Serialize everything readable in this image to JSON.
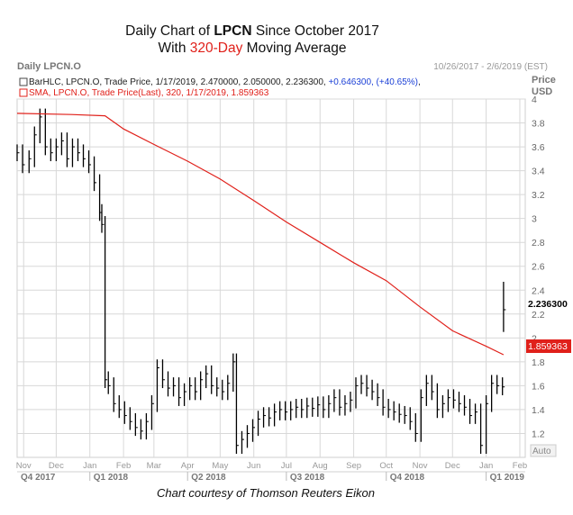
{
  "title": {
    "line1_prefix": "Daily Chart of ",
    "line1_ticker": "LPCN",
    "line1_suffix": " Since October 2017",
    "line2_prefix": "With ",
    "line2_highlight": "320-Day",
    "line2_suffix": " Moving Average"
  },
  "header": {
    "left": "Daily LPCN.O",
    "right": "10/26/2017 - 2/6/2019 (EST)",
    "price_label": "Price",
    "currency_label": "USD"
  },
  "legend": {
    "line1_text": "BarHLC, LPCN.O, Trade Price, 1/17/2019, 2.470000, 2.050000, 2.236300, ",
    "line1_change": "+0.646300, (+40.65%)",
    "line1_end": ",",
    "line2_text": "SMA, LPCN.O, Trade Price(Last),  320,  1/17/2019,  1.859363"
  },
  "badges": {
    "last_price": "2.236300",
    "sma_value": "1.859363",
    "auto": "Auto"
  },
  "caption": "Chart courtesy of Thomson Reuters Eikon",
  "colors": {
    "price": "#000000",
    "sma": "#e0201a",
    "grid": "#d8d8d8",
    "change": "#1a3fd6",
    "axis_text": "#666666"
  },
  "chart_data": {
    "type": "line",
    "y_range": [
      1.0,
      4.0
    ],
    "x_range": [
      "2017-10-26",
      "2019-02-06"
    ],
    "y_ticks": [
      1.2,
      1.4,
      1.6,
      1.8,
      2,
      2.2,
      2.4,
      2.6,
      2.8,
      3,
      3.2,
      3.4,
      3.6,
      3.8,
      4
    ],
    "y_tick_labels": [
      "1.2",
      "1.4",
      "1.6",
      "1.8",
      "2",
      "2.2",
      "2.4",
      "2.6",
      "2.8",
      "3",
      "3.2",
      "3.4",
      "3.6",
      "3.8",
      "4"
    ],
    "months": [
      {
        "label": "Nov",
        "date": "2017-11-01"
      },
      {
        "label": "Dec",
        "date": "2017-12-01"
      },
      {
        "label": "Jan",
        "date": "2018-01-01"
      },
      {
        "label": "Feb",
        "date": "2018-02-01"
      },
      {
        "label": "Mar",
        "date": "2018-03-01"
      },
      {
        "label": "Apr",
        "date": "2018-04-01"
      },
      {
        "label": "May",
        "date": "2018-05-01"
      },
      {
        "label": "Jun",
        "date": "2018-06-01"
      },
      {
        "label": "Jul",
        "date": "2018-07-01"
      },
      {
        "label": "Aug",
        "date": "2018-08-01"
      },
      {
        "label": "Sep",
        "date": "2018-09-01"
      },
      {
        "label": "Oct",
        "date": "2018-10-01"
      },
      {
        "label": "Nov",
        "date": "2018-11-01"
      },
      {
        "label": "Dec",
        "date": "2018-12-01"
      },
      {
        "label": "Jan",
        "date": "2019-01-01"
      },
      {
        "label": "Feb",
        "date": "2019-02-01"
      }
    ],
    "quarters": [
      {
        "label": "Q4 2017",
        "date": "2017-10-26"
      },
      {
        "label": "Q1 2018",
        "date": "2018-01-01"
      },
      {
        "label": "Q2 2018",
        "date": "2018-04-01"
      },
      {
        "label": "Q3 2018",
        "date": "2018-07-01"
      },
      {
        "label": "Q4 2018",
        "date": "2018-10-01"
      },
      {
        "label": "Q1 2019",
        "date": "2019-01-01"
      }
    ],
    "series": [
      {
        "name": "LPCN.O",
        "style": "hlc_bar",
        "points": [
          [
            "2017-10-26",
            3.55
          ],
          [
            "2017-10-31",
            3.45
          ],
          [
            "2017-11-06",
            3.5
          ],
          [
            "2017-11-11",
            3.7
          ],
          [
            "2017-11-16",
            3.85
          ],
          [
            "2017-11-21",
            3.6
          ],
          [
            "2017-11-26",
            3.55
          ],
          [
            "2017-12-01",
            3.6
          ],
          [
            "2017-12-06",
            3.65
          ],
          [
            "2017-12-11",
            3.5
          ],
          [
            "2017-12-16",
            3.6
          ],
          [
            "2017-12-21",
            3.55
          ],
          [
            "2017-12-26",
            3.5
          ],
          [
            "2017-12-31",
            3.45
          ],
          [
            "2018-01-05",
            3.3
          ],
          [
            "2018-01-10",
            3.05
          ],
          [
            "2018-01-12",
            2.95
          ],
          [
            "2018-01-15",
            1.65
          ],
          [
            "2018-01-18",
            1.6
          ],
          [
            "2018-01-23",
            1.45
          ],
          [
            "2018-01-28",
            1.4
          ],
          [
            "2018-02-02",
            1.35
          ],
          [
            "2018-02-07",
            1.3
          ],
          [
            "2018-02-12",
            1.25
          ],
          [
            "2018-02-17",
            1.22
          ],
          [
            "2018-02-22",
            1.3
          ],
          [
            "2018-02-27",
            1.45
          ],
          [
            "2018-03-04",
            1.75
          ],
          [
            "2018-03-09",
            1.65
          ],
          [
            "2018-03-14",
            1.58
          ],
          [
            "2018-03-19",
            1.6
          ],
          [
            "2018-03-24",
            1.5
          ],
          [
            "2018-03-29",
            1.55
          ],
          [
            "2018-04-03",
            1.6
          ],
          [
            "2018-04-08",
            1.55
          ],
          [
            "2018-04-13",
            1.65
          ],
          [
            "2018-04-18",
            1.7
          ],
          [
            "2018-04-23",
            1.6
          ],
          [
            "2018-04-28",
            1.58
          ],
          [
            "2018-05-03",
            1.55
          ],
          [
            "2018-05-08",
            1.62
          ],
          [
            "2018-05-13",
            1.8
          ],
          [
            "2018-05-16",
            1.1
          ],
          [
            "2018-05-21",
            1.15
          ],
          [
            "2018-05-26",
            1.2
          ],
          [
            "2018-05-31",
            1.25
          ],
          [
            "2018-06-05",
            1.32
          ],
          [
            "2018-06-10",
            1.35
          ],
          [
            "2018-06-15",
            1.33
          ],
          [
            "2018-06-20",
            1.38
          ],
          [
            "2018-06-25",
            1.4
          ],
          [
            "2018-06-30",
            1.38
          ],
          [
            "2018-07-05",
            1.4
          ],
          [
            "2018-07-10",
            1.42
          ],
          [
            "2018-07-15",
            1.4
          ],
          [
            "2018-07-20",
            1.43
          ],
          [
            "2018-07-25",
            1.41
          ],
          [
            "2018-07-30",
            1.44
          ],
          [
            "2018-08-04",
            1.4
          ],
          [
            "2018-08-09",
            1.45
          ],
          [
            "2018-08-14",
            1.5
          ],
          [
            "2018-08-19",
            1.42
          ],
          [
            "2018-08-24",
            1.45
          ],
          [
            "2018-08-29",
            1.48
          ],
          [
            "2018-09-03",
            1.6
          ],
          [
            "2018-09-08",
            1.62
          ],
          [
            "2018-09-13",
            1.58
          ],
          [
            "2018-09-18",
            1.55
          ],
          [
            "2018-09-23",
            1.5
          ],
          [
            "2018-09-28",
            1.42
          ],
          [
            "2018-10-03",
            1.4
          ],
          [
            "2018-10-08",
            1.38
          ],
          [
            "2018-10-13",
            1.36
          ],
          [
            "2018-10-18",
            1.35
          ],
          [
            "2018-10-23",
            1.3
          ],
          [
            "2018-10-28",
            1.2
          ],
          [
            "2018-11-02",
            1.5
          ],
          [
            "2018-11-07",
            1.62
          ],
          [
            "2018-11-12",
            1.55
          ],
          [
            "2018-11-17",
            1.4
          ],
          [
            "2018-11-22",
            1.45
          ],
          [
            "2018-11-27",
            1.5
          ],
          [
            "2018-12-02",
            1.48
          ],
          [
            "2018-12-07",
            1.45
          ],
          [
            "2018-12-12",
            1.42
          ],
          [
            "2018-12-17",
            1.35
          ],
          [
            "2018-12-22",
            1.38
          ],
          [
            "2018-12-27",
            1.1
          ],
          [
            "2019-01-01",
            1.45
          ],
          [
            "2019-01-06",
            1.62
          ],
          [
            "2019-01-11",
            1.6
          ],
          [
            "2019-01-16",
            1.59
          ],
          [
            "2019-01-17",
            2.2363
          ]
        ]
      },
      {
        "name": "SMA 320",
        "style": "line",
        "points": [
          [
            "2017-10-26",
            3.88
          ],
          [
            "2017-12-15",
            3.87
          ],
          [
            "2018-01-15",
            3.86
          ],
          [
            "2018-02-01",
            3.75
          ],
          [
            "2018-03-01",
            3.62
          ],
          [
            "2018-04-01",
            3.48
          ],
          [
            "2018-05-01",
            3.33
          ],
          [
            "2018-06-01",
            3.15
          ],
          [
            "2018-07-01",
            2.97
          ],
          [
            "2018-08-01",
            2.8
          ],
          [
            "2018-09-01",
            2.63
          ],
          [
            "2018-10-01",
            2.48
          ],
          [
            "2018-11-01",
            2.26
          ],
          [
            "2018-12-01",
            2.06
          ],
          [
            "2019-01-01",
            1.93
          ],
          [
            "2019-01-17",
            1.859363
          ]
        ]
      }
    ]
  }
}
